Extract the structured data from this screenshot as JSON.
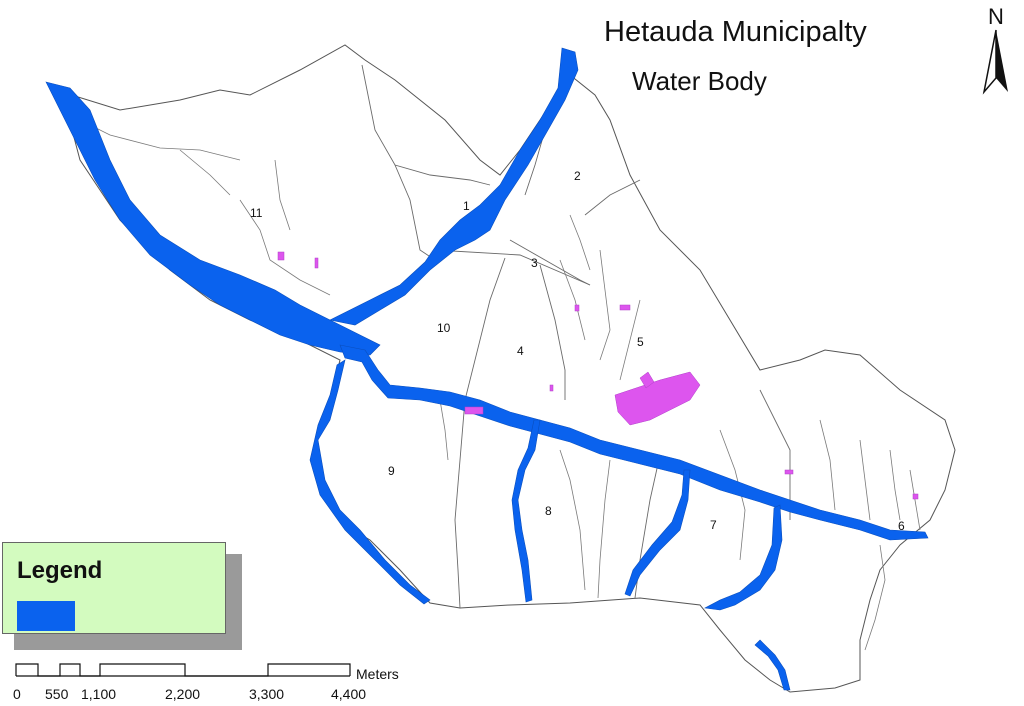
{
  "map": {
    "title": "Hetauda Municipalty",
    "subtitle": "Water Body",
    "north_label": "N",
    "ward_labels": [
      "1",
      "2",
      "3",
      "4",
      "5",
      "6",
      "7",
      "8",
      "9",
      "10",
      "11"
    ]
  },
  "legend": {
    "title": "Legend",
    "swatch_color": "#0a62ee"
  },
  "scale_bar": {
    "unit": "Meters",
    "ticks": [
      "0",
      "550",
      "1,100",
      "2,200",
      "3,300",
      "4,400"
    ]
  },
  "colors": {
    "water": "#0a62ee",
    "urban_patches": "#dd55ee",
    "boundary": "#555555"
  },
  "icons": [
    "north-arrow-icon"
  ]
}
